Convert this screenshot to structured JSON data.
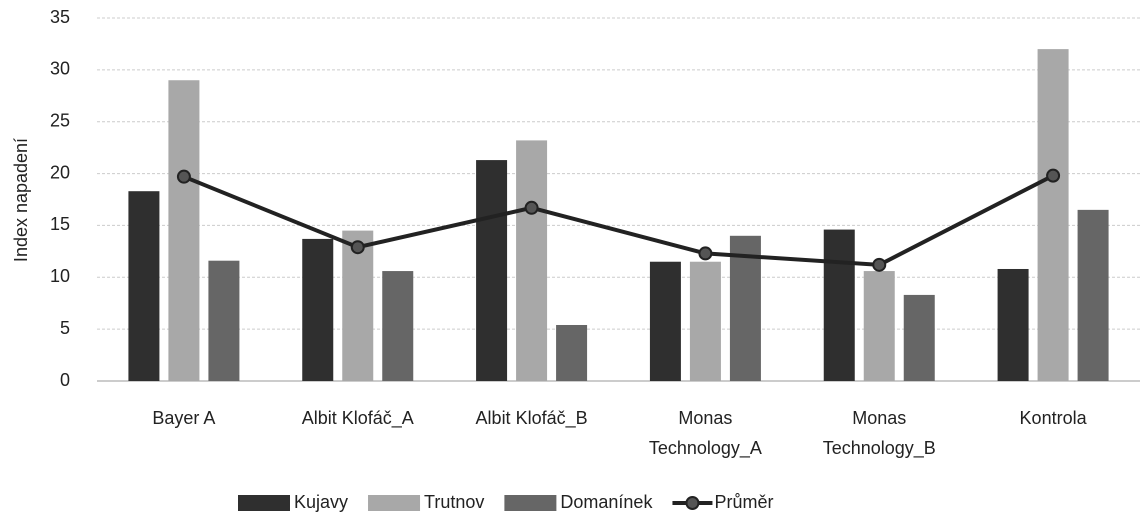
{
  "chart_data": {
    "type": "bar",
    "y_label": "Index napadení",
    "categories": [
      "Bayer A",
      "Albit Klofáč_A",
      "Albit Klofáč_B",
      "Monas Technology_A",
      "Monas Technology_B",
      "Kontrola"
    ],
    "series": [
      {
        "name": "Kujavy",
        "color": "#2f2f2f",
        "values": [
          18.3,
          13.7,
          21.3,
          11.5,
          14.6,
          10.8
        ]
      },
      {
        "name": "Trutnov",
        "color": "#a8a8a8",
        "values": [
          29,
          14.5,
          23.2,
          11.5,
          10.6,
          32
        ]
      },
      {
        "name": "Domanínek",
        "color": "#666666",
        "values": [
          11.6,
          10.6,
          5.4,
          14.0,
          8.3,
          16.5
        ]
      },
      {
        "name": "Průměr",
        "type": "line",
        "color": "#222222",
        "values": [
          19.7,
          12.9,
          16.7,
          12.3,
          11.2,
          19.8
        ]
      }
    ],
    "ylim": [
      0,
      35
    ],
    "yticks": [
      0,
      5,
      10,
      15,
      20,
      25,
      30,
      35
    ],
    "grid": true,
    "legend": "bottom"
  }
}
